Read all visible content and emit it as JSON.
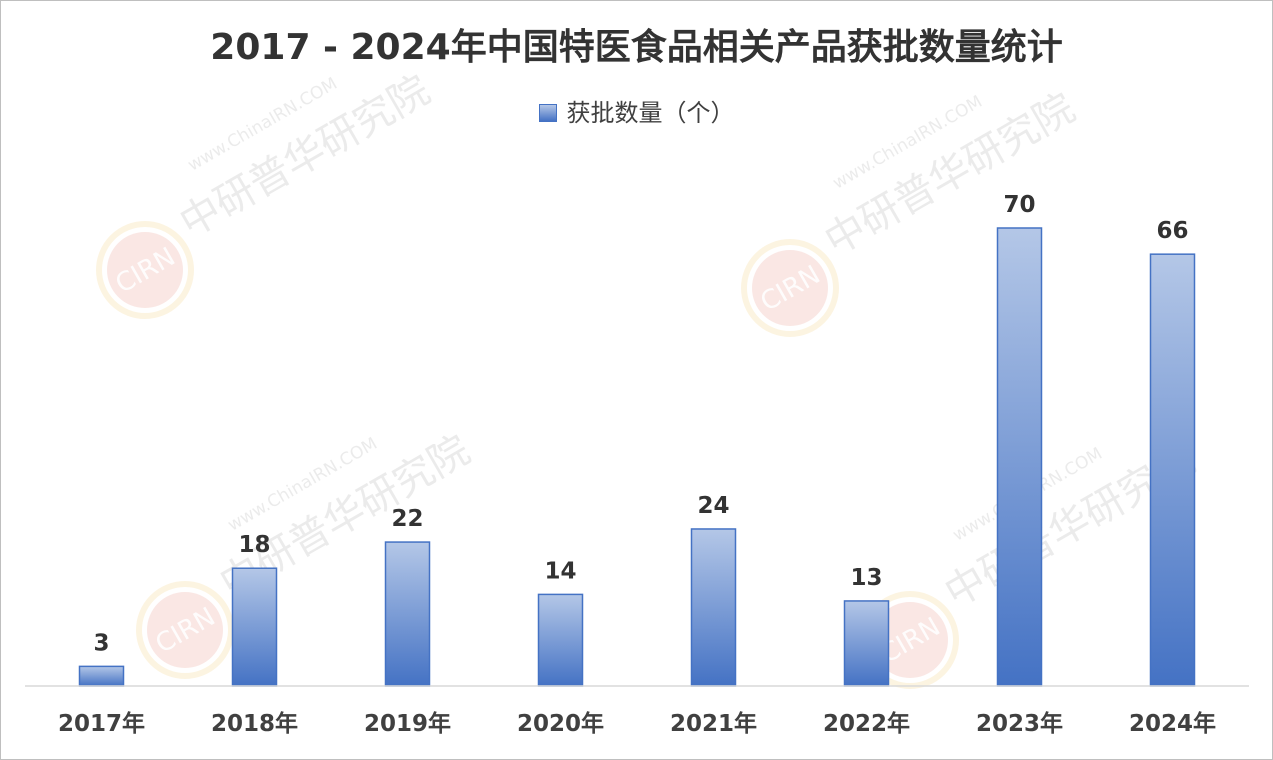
{
  "chart_data": {
    "type": "bar",
    "title": "2017 - 2024年中国特医食品相关产品获批数量统计",
    "categories": [
      "2017年",
      "2018年",
      "2019年",
      "2020年",
      "2021年",
      "2022年",
      "2023年",
      "2024年"
    ],
    "series": [
      {
        "name": "获批数量（个）",
        "values": [
          3,
          18,
          22,
          14,
          24,
          13,
          70,
          66
        ]
      }
    ],
    "ylim": [
      0,
      70
    ],
    "grid": false,
    "legend_position": "top-center",
    "data_labels": true,
    "colors": {
      "bar_top": "#b4c7e7",
      "bar_bottom": "#4472c4",
      "bar_border": "#4472c4"
    }
  },
  "watermark": {
    "site": "www.ChinaIRN.COM",
    "org": "中研普华研究院",
    "logo": "CIRN"
  }
}
